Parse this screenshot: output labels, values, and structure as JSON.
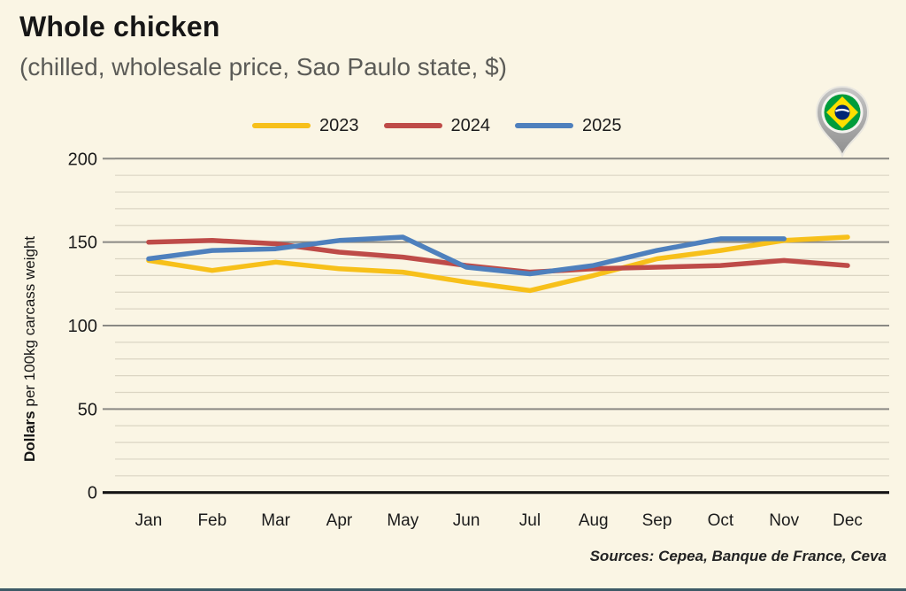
{
  "header": {
    "title": "Whole chicken",
    "subtitle": "(chilled, wholesale price, Sao Paulo state, $)"
  },
  "y_axis": {
    "bold": "Dollars",
    "rest": " per 100kg carcass weight"
  },
  "source_note": "Sources: Cepea, Banque de France, Ceva",
  "icons": {
    "location_pin": "brazil-flag-map-pin-icon"
  },
  "colors": {
    "background": "#FAF5E4",
    "grid_minor": "#DBD5C3",
    "grid_major": "#8A8984",
    "axis": "#141414",
    "text": "#1B1B1B",
    "flag_green": "#009C3B",
    "flag_yellow": "#FEDF00",
    "flag_blue": "#002776",
    "pin_gray": "#A6A6A6"
  },
  "chart_data": {
    "type": "line",
    "title": "Whole chicken",
    "subtitle": "(chilled, wholesale price, Sao Paulo state, $)",
    "xlabel": "",
    "ylabel": "Dollars per 100kg carcass weight",
    "ylim": [
      0,
      200
    ],
    "y_major_ticks": [
      0,
      50,
      100,
      150,
      200
    ],
    "y_minor_step": 10,
    "grid": true,
    "legend_position": "top-center",
    "categories": [
      "Jan",
      "Feb",
      "Mar",
      "Apr",
      "May",
      "Jun",
      "Jul",
      "Aug",
      "Sep",
      "Oct",
      "Nov",
      "Dec"
    ],
    "series": [
      {
        "name": "2023",
        "color": "#F7C01A",
        "values": [
          139,
          133,
          138,
          134,
          132,
          126,
          121,
          130,
          140,
          145,
          151,
          153
        ]
      },
      {
        "name": "2024",
        "color": "#BE4B48",
        "values": [
          150,
          151,
          149,
          144,
          141,
          136,
          132,
          134,
          135,
          136,
          139,
          136
        ]
      },
      {
        "name": "2025",
        "color": "#4E80BD",
        "values": [
          140,
          145,
          146,
          151,
          153,
          135,
          131,
          136,
          145,
          152,
          152,
          null
        ]
      }
    ],
    "source": "Sources: Cepea, Banque de France, Ceva"
  }
}
